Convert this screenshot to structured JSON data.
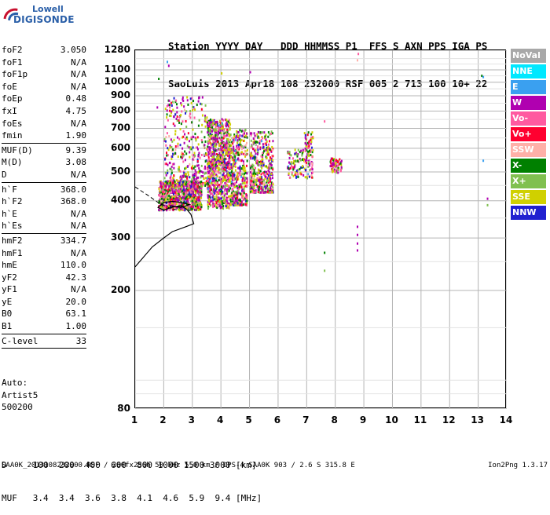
{
  "logo": {
    "line1": "Lowell",
    "line2": "DIGISONDE"
  },
  "header": {
    "line1": "Station YYYY DAY   DDD HHMMSS P1  FFS S AXN PPS IGA PS",
    "line2": "SaoLuis 2013 Apr18 108 232000 RSF 005 2 713 100 10+ 22"
  },
  "params": {
    "group1": [
      {
        "name": "foF2",
        "value": "3.050"
      },
      {
        "name": "foF1",
        "value": "N/A"
      },
      {
        "name": "foF1p",
        "value": "N/A"
      },
      {
        "name": "foE",
        "value": "N/A"
      },
      {
        "name": "foEp",
        "value": "0.48"
      },
      {
        "name": "fxI",
        "value": "4.75"
      },
      {
        "name": "foEs",
        "value": "N/A"
      },
      {
        "name": "fmin",
        "value": "1.90"
      }
    ],
    "group2": [
      {
        "name": "MUF(D)",
        "value": "9.39"
      },
      {
        "name": "M(D)",
        "value": "3.08"
      },
      {
        "name": "D",
        "value": "N/A"
      }
    ],
    "group3": [
      {
        "name": "h`F",
        "value": "368.0"
      },
      {
        "name": "h`F2",
        "value": "368.0"
      },
      {
        "name": "h`E",
        "value": "N/A"
      },
      {
        "name": "h`Es",
        "value": "N/A"
      }
    ],
    "group4": [
      {
        "name": "hmF2",
        "value": "334.7"
      },
      {
        "name": "hmF1",
        "value": "N/A"
      },
      {
        "name": "hmE",
        "value": "110.0"
      },
      {
        "name": "yF2",
        "value": "42.3"
      },
      {
        "name": "yF1",
        "value": "N/A"
      },
      {
        "name": "yE",
        "value": "20.0"
      },
      {
        "name": "B0",
        "value": "63.1"
      },
      {
        "name": "B1",
        "value": "1.00"
      }
    ],
    "group5": [
      {
        "name": "C-level",
        "value": "33"
      }
    ]
  },
  "auto": {
    "line1": "Auto:",
    "line2": "Artist5",
    "line3": "500200"
  },
  "legend": [
    {
      "label": "NoVal",
      "color": "#a8a8a8"
    },
    {
      "label": "NNE",
      "color": "#00e8ff"
    },
    {
      "label": "E",
      "color": "#3aa0f0"
    },
    {
      "label": "W",
      "color": "#b000b0"
    },
    {
      "label": "Vo-",
      "color": "#ff5aa0"
    },
    {
      "label": "Vo+",
      "color": "#ff0030"
    },
    {
      "label": "SSW",
      "color": "#ffb0a8"
    },
    {
      "label": "X-",
      "color": "#008000"
    },
    {
      "label": "X+",
      "color": "#80c050"
    },
    {
      "label": "SSE",
      "color": "#d0d000"
    },
    {
      "label": "NNW",
      "color": "#2020d0"
    }
  ],
  "bottom": {
    "line1": "D     100  200  400  600  800 1000 1500 3000 [km]",
    "line2": "MUF   3.4  3.4  3.6  3.8  4.1  4.6  5.9  9.4 [MHz]"
  },
  "footer": {
    "left": "SAA0K_2013108232000.RSF / 260fx256h 50 kHz 5.0 km / DPS-4 SAA0K 903 / 2.6 S 315.8 E",
    "right": "Ion2Png 1.3.17"
  },
  "chart_data": {
    "type": "scatter",
    "title": "",
    "xlabel": "",
    "ylabel": "",
    "xlim": [
      1,
      14
    ],
    "ylim": [
      80,
      1280
    ],
    "y_scale": "log",
    "grid": true,
    "x_ticks": [
      1,
      2,
      3,
      4,
      5,
      6,
      7,
      8,
      9,
      10,
      11,
      12,
      13,
      14
    ],
    "y_ticks": [
      80,
      200,
      300,
      400,
      500,
      600,
      700,
      800,
      900,
      1000,
      1100,
      1280
    ],
    "echo_clusters": [
      {
        "x_range": [
          1.8,
          3.3
        ],
        "y_range": [
          375,
          470
        ],
        "density": "high"
      },
      {
        "x_range": [
          2.0,
          3.5
        ],
        "y_range": [
          450,
          900
        ],
        "density": "medium"
      },
      {
        "x_range": [
          3.5,
          4.3
        ],
        "y_range": [
          380,
          760
        ],
        "density": "high"
      },
      {
        "x_range": [
          4.3,
          4.9
        ],
        "y_range": [
          390,
          700
        ],
        "density": "medium"
      },
      {
        "x_range": [
          5.0,
          5.8
        ],
        "y_range": [
          430,
          690
        ],
        "density": "medium"
      },
      {
        "x_range": [
          6.3,
          6.9
        ],
        "y_range": [
          480,
          600
        ],
        "density": "low"
      },
      {
        "x_range": [
          6.9,
          7.2
        ],
        "y_range": [
          480,
          690
        ],
        "density": "low"
      },
      {
        "x_range": [
          7.8,
          8.2
        ],
        "y_range": [
          500,
          560
        ],
        "density": "low"
      }
    ],
    "scaled_trace": [
      {
        "x": 1.0,
        "y": 240
      },
      {
        "x": 1.6,
        "y": 280
      },
      {
        "x": 2.0,
        "y": 300
      },
      {
        "x": 2.3,
        "y": 315
      },
      {
        "x": 2.8,
        "y": 328
      },
      {
        "x": 3.05,
        "y": 335
      },
      {
        "x": 2.95,
        "y": 360
      },
      {
        "x": 2.8,
        "y": 375
      },
      {
        "x": 2.6,
        "y": 385
      },
      {
        "x": 2.4,
        "y": 382
      },
      {
        "x": 2.2,
        "y": 378
      },
      {
        "x": 2.0,
        "y": 372
      },
      {
        "x": 1.8,
        "y": 380
      },
      {
        "x": 2.0,
        "y": 395
      },
      {
        "x": 2.3,
        "y": 398
      },
      {
        "x": 2.6,
        "y": 395
      },
      {
        "x": 2.9,
        "y": 388
      },
      {
        "x": 2.6,
        "y": 380
      },
      {
        "x": 2.2,
        "y": 385
      }
    ],
    "dashed_trace": [
      {
        "x": 1.0,
        "y": 445
      },
      {
        "x": 1.4,
        "y": 420
      },
      {
        "x": 1.8,
        "y": 395
      },
      {
        "x": 2.2,
        "y": 378
      },
      {
        "x": 2.5,
        "y": 372
      }
    ]
  }
}
